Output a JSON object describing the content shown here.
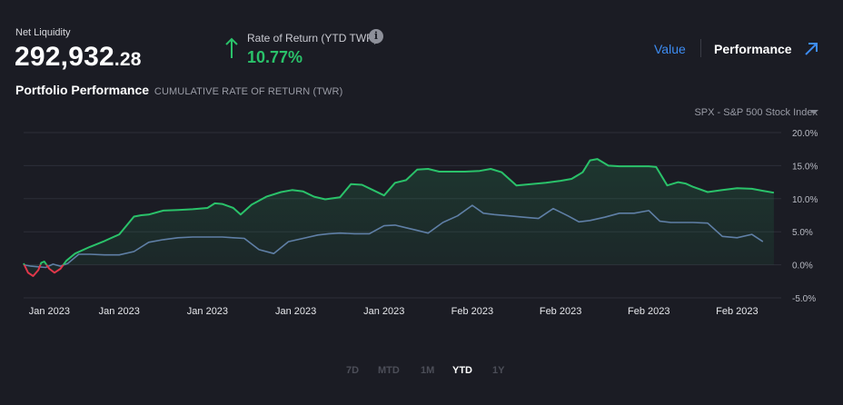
{
  "header": {
    "net_liquidity_label": "Net Liquidity",
    "net_liquidity_int": "292,932",
    "net_liquidity_dec": ".28",
    "ror_label": "Rate of Return (YTD TWR)",
    "ror_value": "10.77%",
    "info_glyph": "i"
  },
  "section": {
    "title": "Portfolio Performance",
    "subtitle": "CUMULATIVE RATE OF RETURN (TWR)"
  },
  "view_tabs": {
    "value_label": "Value",
    "performance_label": "Performance",
    "active": "Performance"
  },
  "benchmark": {
    "selected": "SPX - S&P 500 Stock Index"
  },
  "colors": {
    "portfolio_up": "#2ac26a",
    "portfolio_down": "#e0374a",
    "benchmark": "#5f7fa6",
    "accent": "#3d8cf2"
  },
  "range_tabs": {
    "items": [
      "7D",
      "MTD",
      "1M",
      "YTD",
      "1Y"
    ],
    "active": "YTD"
  },
  "chart_data": {
    "type": "line",
    "ylim": [
      -5,
      20
    ],
    "y_ticks": [
      20,
      15,
      10,
      5,
      0,
      -5
    ],
    "y_tick_labels": [
      "20.0%",
      "15.0%",
      "10.0%",
      "5.0%",
      "0.0%",
      "-5.0%"
    ],
    "x_tick_labels": [
      "Jan 2023",
      "Jan 2023",
      "Jan 2023",
      "Jan 2023",
      "Jan 2023",
      "Feb 2023",
      "Feb 2023",
      "Feb 2023",
      "Feb 2023"
    ],
    "x_tick_positions": [
      0.5,
      10,
      22,
      34,
      46,
      58,
      70,
      82,
      94
    ],
    "x_range": [
      -3,
      100
    ],
    "grid": true,
    "series": [
      {
        "name": "",
        "x": [
          -3,
          -2.4,
          -1.7,
          -1,
          -0.6,
          -0.2,
          0.5,
          1.2,
          2,
          2.8,
          4,
          6,
          8,
          10,
          12,
          13,
          14,
          16,
          18,
          20,
          22,
          23,
          24,
          25.5,
          26.5,
          28,
          30,
          32,
          33.5,
          35,
          36.5,
          38,
          40,
          41.5,
          43,
          44.5,
          46,
          47.5,
          49,
          50.5,
          52,
          53.5,
          55,
          57,
          59,
          60.5,
          62,
          64,
          66,
          68,
          70,
          71.5,
          73,
          74,
          75,
          76.5,
          78,
          80,
          82,
          83,
          84.5,
          86,
          87,
          88,
          90,
          92,
          94,
          96,
          97.5,
          99
        ],
        "values": [
          0.2,
          -1.2,
          -1.7,
          -0.8,
          0.3,
          0.5,
          -0.6,
          -1.2,
          -0.6,
          0.6,
          1.7,
          2.7,
          3.6,
          4.6,
          7.3,
          7.5,
          7.6,
          8.2,
          8.3,
          8.4,
          8.6,
          9.3,
          9.2,
          8.6,
          7.6,
          9.1,
          10.3,
          11,
          11.3,
          11.1,
          10.3,
          9.9,
          10.2,
          12.2,
          12.1,
          11.3,
          10.5,
          12.4,
          12.8,
          14.4,
          14.5,
          14.1,
          14.1,
          14.1,
          14.2,
          14.5,
          14,
          12,
          12.2,
          12.4,
          12.7,
          13,
          14,
          15.8,
          16,
          15,
          14.9,
          14.9,
          14.9,
          14.8,
          12,
          12.5,
          12.3,
          11.8,
          11,
          11.3,
          11.6,
          11.5,
          11.2,
          10.9
        ]
      },
      {
        "name": "SPX - S&P 500 Stock Index",
        "x": [
          -3,
          -2,
          -1,
          0,
          1,
          2,
          3,
          4.5,
          6,
          8,
          10,
          12,
          14,
          16,
          18,
          20,
          22,
          24,
          25.5,
          27,
          29,
          31,
          33,
          35,
          37,
          38.5,
          40,
          42,
          44,
          46,
          47.5,
          49,
          50.5,
          52,
          54,
          56,
          58,
          59.5,
          61,
          63,
          65,
          67,
          69,
          71,
          72.5,
          74,
          76,
          78,
          80,
          82,
          83.5,
          85,
          86.5,
          88,
          90,
          92,
          94,
          96,
          97.5
        ],
        "values": [
          0,
          -0.2,
          -0.3,
          -0.4,
          0.1,
          -0.2,
          0.2,
          1.6,
          1.6,
          1.5,
          1.5,
          2,
          3.4,
          3.8,
          4.1,
          4.2,
          4.2,
          4.2,
          4.1,
          4,
          2.3,
          1.7,
          3.5,
          4,
          4.5,
          4.7,
          4.8,
          4.7,
          4.7,
          5.9,
          6,
          5.6,
          5.2,
          4.8,
          6.4,
          7.4,
          9,
          7.8,
          7.6,
          7.4,
          7.2,
          7,
          8.5,
          7.4,
          6.5,
          6.7,
          7.2,
          7.8,
          7.8,
          8.2,
          6.6,
          6.4,
          6.4,
          6.4,
          6.3,
          4.3,
          4.1,
          4.6,
          3.5
        ]
      }
    ]
  }
}
